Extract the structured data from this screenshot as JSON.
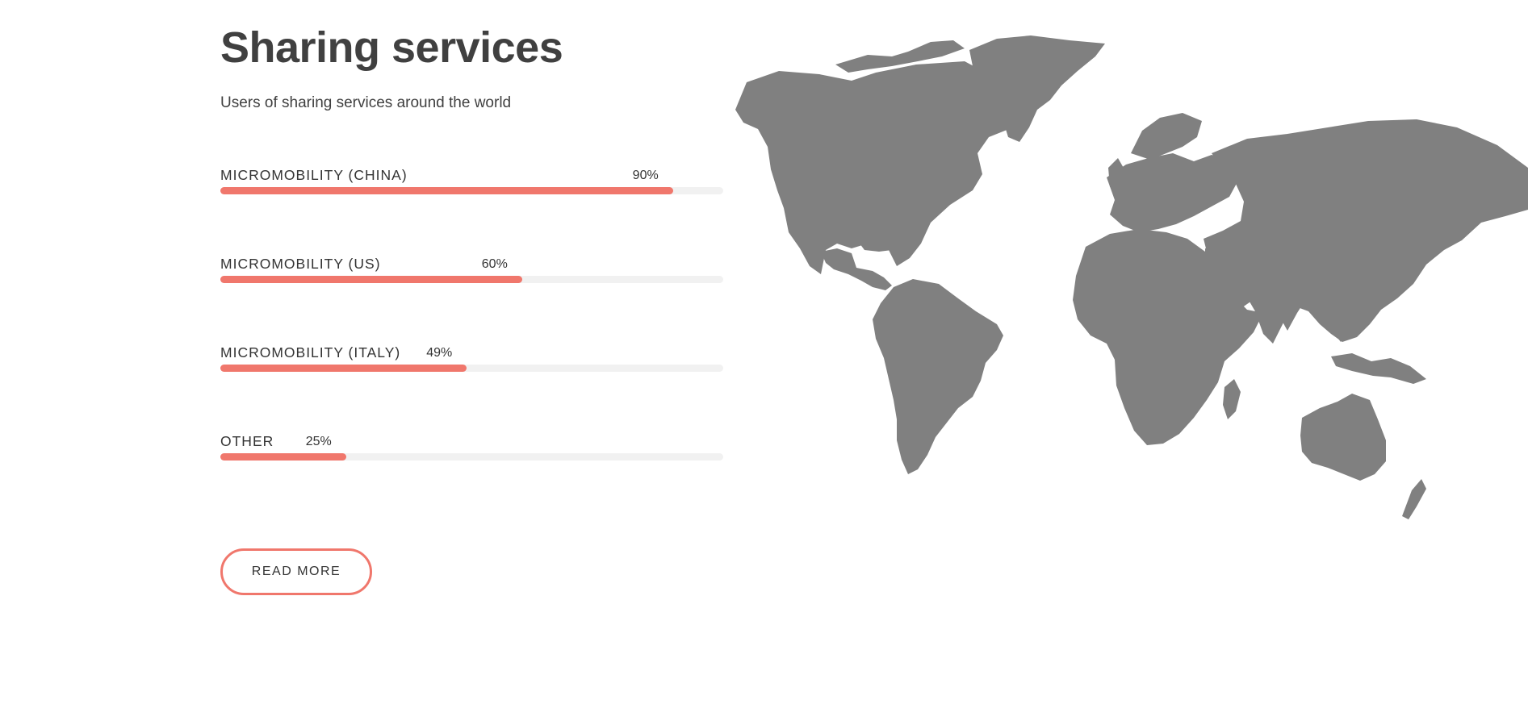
{
  "header": {
    "title": "Sharing services",
    "subtitle": "Users of sharing services around the world"
  },
  "skills": [
    {
      "label": "MICROMOBILITY (CHINA)",
      "value_text": "90%",
      "value": 0.9
    },
    {
      "label": "MICROMOBILITY (US)",
      "value_text": "60%",
      "value": 0.6
    },
    {
      "label": "MICROMOBILITY (ITALY)",
      "value_text": "49%",
      "value": 0.49
    },
    {
      "label": "OTHER",
      "value_text": "25%",
      "value": 0.25
    }
  ],
  "cta": {
    "label": "READ MORE"
  },
  "colors": {
    "accent": "#f0776c",
    "track": "#f1f1f1",
    "map": "#808080"
  },
  "icons": {
    "map": "world-map-icon"
  }
}
